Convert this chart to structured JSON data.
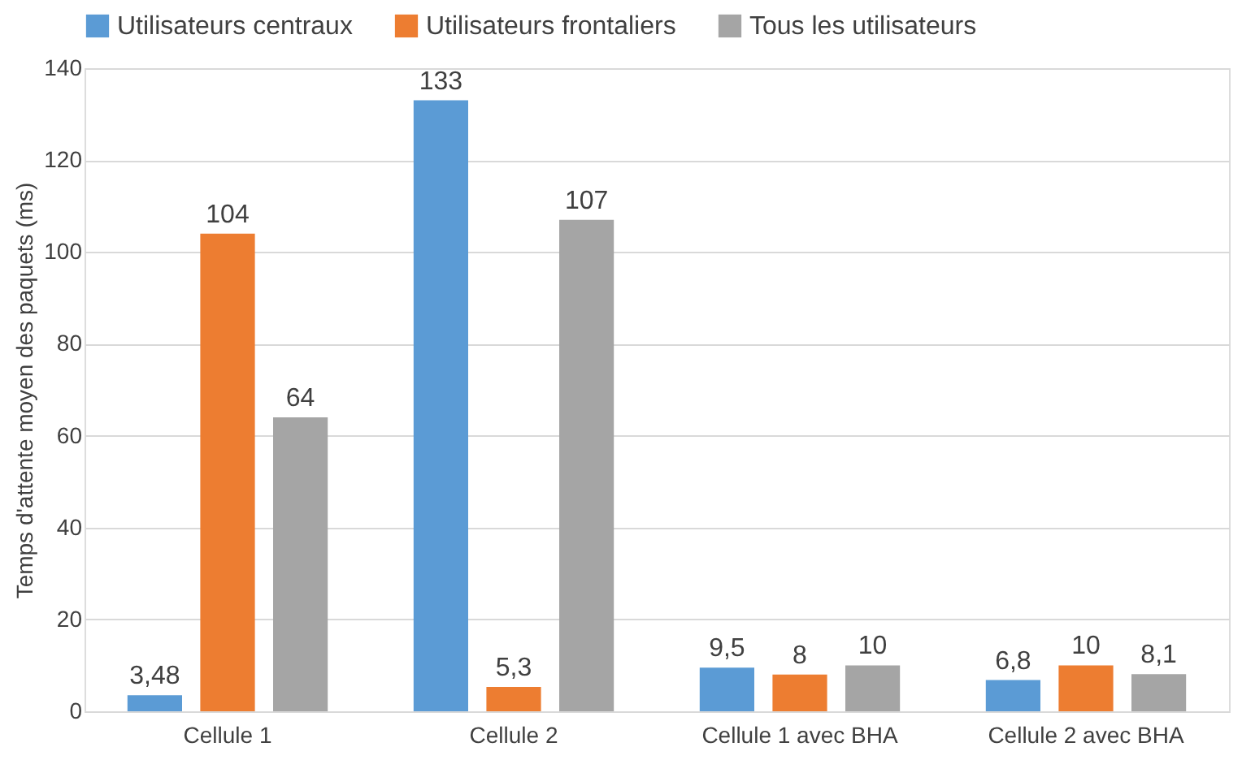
{
  "chart_data": {
    "type": "bar",
    "ylabel": "Temps d'attente moyen des paquets (ms)",
    "categories": [
      "Cellule 1",
      "Cellule 2",
      "Cellule 1 avec BHA",
      "Cellule 2 avec BHA"
    ],
    "series": [
      {
        "name": "Utilisateurs centraux",
        "color": "#5b9bd5",
        "values": [
          3.48,
          133,
          9.5,
          6.8
        ],
        "value_labels": [
          "3,48",
          "133",
          "9,5",
          "6,8"
        ]
      },
      {
        "name": "Utilisateurs frontaliers",
        "color": "#ed7d31",
        "values": [
          104,
          5.3,
          8,
          10
        ],
        "value_labels": [
          "104",
          "5,3",
          "8",
          "10"
        ]
      },
      {
        "name": "Tous les utilisateurs",
        "color": "#a5a5a5",
        "values": [
          64,
          107,
          10,
          8.1
        ],
        "value_labels": [
          "64",
          "107",
          "10",
          "8,1"
        ]
      }
    ],
    "ylim": [
      0,
      140
    ],
    "yticks": [
      0,
      20,
      40,
      60,
      80,
      100,
      120,
      140
    ],
    "grid": "y",
    "legend": "top"
  }
}
